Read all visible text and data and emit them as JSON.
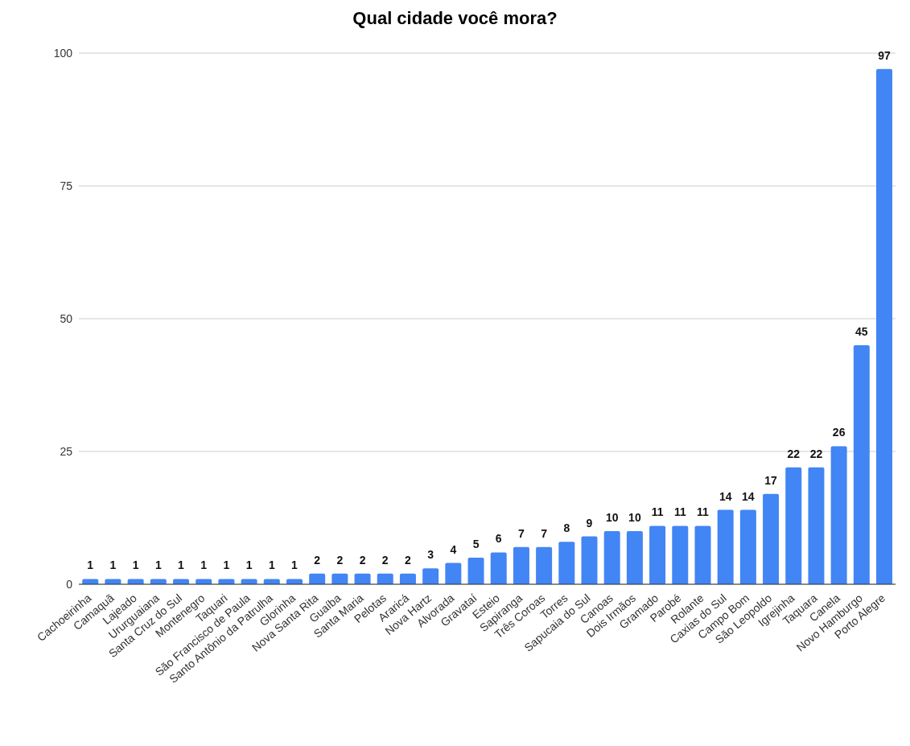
{
  "chart_data": {
    "type": "bar",
    "title": "Qual cidade você mora?",
    "categories": [
      "Cachoeirinha",
      "Camaquã",
      "Lajeado",
      "Ururguaiana",
      "Santa Cruz do Sul",
      "Montenegro",
      "Taquari",
      "São Francisco de Paula",
      "Santo Antônio da Patrulha",
      "Glorinha",
      "Nova Santa Rita",
      "Guaíba",
      "Santa Maria",
      "Pelotas",
      "Araricá",
      "Nova Hartz",
      "Alvorada",
      "Gravataí",
      "Esteio",
      "Sapiranga",
      "Três Coroas",
      "Torres",
      "Sapucaia do Sul",
      "Canoas",
      "Dois Irmãos",
      "Gramado",
      "Parobé",
      "Rolante",
      "Caxias do Sul",
      "Campo Bom",
      "São Leopoldo",
      "Igrejinha",
      "Taquara",
      "Canela",
      "Novo Hamburgo",
      "Porto Alegre"
    ],
    "values": [
      1,
      1,
      1,
      1,
      1,
      1,
      1,
      1,
      1,
      1,
      2,
      2,
      2,
      2,
      2,
      3,
      4,
      5,
      6,
      7,
      7,
      8,
      9,
      10,
      10,
      11,
      11,
      11,
      14,
      14,
      17,
      22,
      22,
      26,
      45,
      97
    ],
    "color": "#4285f4",
    "ylim": [
      0,
      100
    ],
    "yticks": [
      0,
      25,
      50,
      75,
      100
    ],
    "grid": "y",
    "data_labels": true
  }
}
